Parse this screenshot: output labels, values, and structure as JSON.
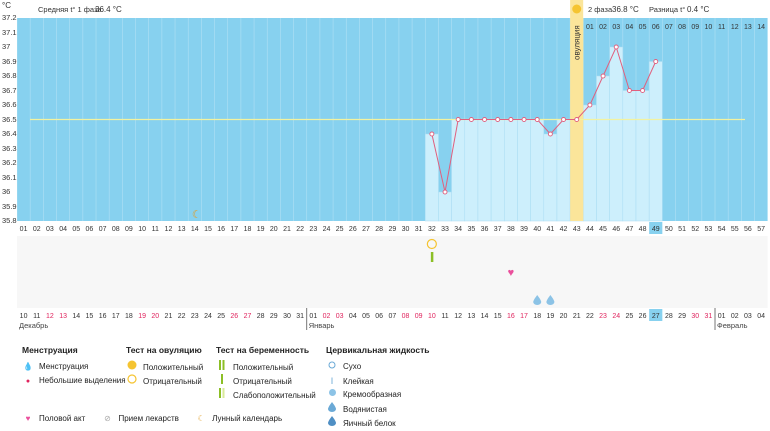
{
  "unit_label": "°C",
  "header": {
    "phase1_label": "Средняя t° 1 фаза",
    "phase1_value": "36.4 °C",
    "phase2_label": "2 фаза",
    "phase2_value": "36.8 °C",
    "diff_label": "Разница t°",
    "diff_value": "0.4 °C"
  },
  "ovulation_label": "овуляция",
  "colors": {
    "chart_bg": "#87d1ef",
    "bar_fill": "#cdeffc",
    "line": "#e0607e",
    "cover_line": "#f2f2a0",
    "ovulation": "#fbe59a",
    "red_text": "#e0245e",
    "phase2_header": "#ffffff",
    "highlight_day": "#87d1ef"
  },
  "chart_data": {
    "type": "line",
    "title": "",
    "ylabel": "°C",
    "ylim": [
      35.8,
      37.2
    ],
    "yticks": [
      "35.8",
      "35.9",
      "36",
      "36.1",
      "36.2",
      "36.3",
      "36.4",
      "36.5",
      "36.6",
      "36.7",
      "36.8",
      "36.9",
      "37",
      "37.1",
      "37.2"
    ],
    "cycle_days": [
      "01",
      "02",
      "03",
      "04",
      "05",
      "06",
      "07",
      "08",
      "09",
      "10",
      "11",
      "12",
      "13",
      "14",
      "15",
      "16",
      "17",
      "18",
      "19",
      "20",
      "21",
      "22",
      "23",
      "24",
      "25",
      "26",
      "27",
      "28",
      "29",
      "30",
      "31",
      "32",
      "33",
      "34",
      "35",
      "36",
      "37",
      "38",
      "39",
      "40",
      "41",
      "42",
      "43",
      "44",
      "45",
      "46",
      "47",
      "48",
      "49",
      "50",
      "51",
      "52",
      "53",
      "54",
      "55",
      "56",
      "57"
    ],
    "phase2_top_days": [
      "01",
      "02",
      "03",
      "04",
      "05",
      "06",
      "07",
      "08",
      "09",
      "10",
      "11",
      "12",
      "13",
      "14"
    ],
    "temperatures": {
      "32": 36.4,
      "33": 36.0,
      "34": 36.5,
      "35": 36.5,
      "36": 36.5,
      "37": 36.5,
      "38": 36.5,
      "39": 36.5,
      "40": 36.5,
      "41": 36.4,
      "42": 36.5,
      "43": 36.5,
      "44": 36.6,
      "45": 36.8,
      "46": 37.0,
      "47": 36.7,
      "48": 36.7,
      "49": 36.9
    },
    "cover_line": 36.5,
    "ovulation_day": "43",
    "today_day": "49",
    "calendar_dates": [
      "10",
      "11",
      "12",
      "13",
      "14",
      "15",
      "16",
      "17",
      "18",
      "19",
      "20",
      "21",
      "22",
      "23",
      "24",
      "25",
      "26",
      "27",
      "28",
      "29",
      "30",
      "31",
      "01",
      "02",
      "03",
      "04",
      "05",
      "06",
      "07",
      "08",
      "09",
      "10",
      "11",
      "12",
      "13",
      "14",
      "15",
      "16",
      "17",
      "18",
      "19",
      "20",
      "21",
      "22",
      "23",
      "24",
      "25",
      "26",
      "27",
      "28",
      "29",
      "30",
      "31",
      "01",
      "02",
      "03",
      "04"
    ],
    "red_dates": [
      2,
      3,
      9,
      10,
      16,
      17,
      23,
      24,
      29,
      30,
      31,
      37,
      38,
      44,
      45,
      51,
      52
    ],
    "months": [
      {
        "label": "Декабрь",
        "start": 0
      },
      {
        "label": "Январь",
        "start": 22
      },
      {
        "label": "Февраль",
        "start": 53
      }
    ],
    "markers": [
      {
        "day": "14",
        "type": "moon"
      },
      {
        "day": "32",
        "type": "ovulation-negative"
      },
      {
        "day": "32",
        "type": "pregnancy-negative"
      },
      {
        "day": "38",
        "type": "intercourse"
      },
      {
        "day": "40",
        "type": "fluid-watery"
      },
      {
        "day": "41",
        "type": "fluid-watery"
      }
    ]
  },
  "legend": {
    "menstruation": {
      "title": "Менструация",
      "items": [
        "Менструация",
        "Небольшие выделения"
      ]
    },
    "ovulation_test": {
      "title": "Тест на овуляцию",
      "items": [
        "Положительный",
        "Отрицательный"
      ]
    },
    "pregnancy_test": {
      "title": "Тест на беременность",
      "items": [
        "Положительный",
        "Отрицательный",
        "Слабоположительный"
      ]
    },
    "cervical_fluid": {
      "title": "Цервикальная жидкость",
      "items": [
        "Сухо",
        "Клейкая",
        "Кремообразная",
        "Водянистая",
        "Яичный белок"
      ]
    },
    "misc": [
      "Половой акт",
      "Прием лекарств",
      "Лунный календарь"
    ]
  }
}
